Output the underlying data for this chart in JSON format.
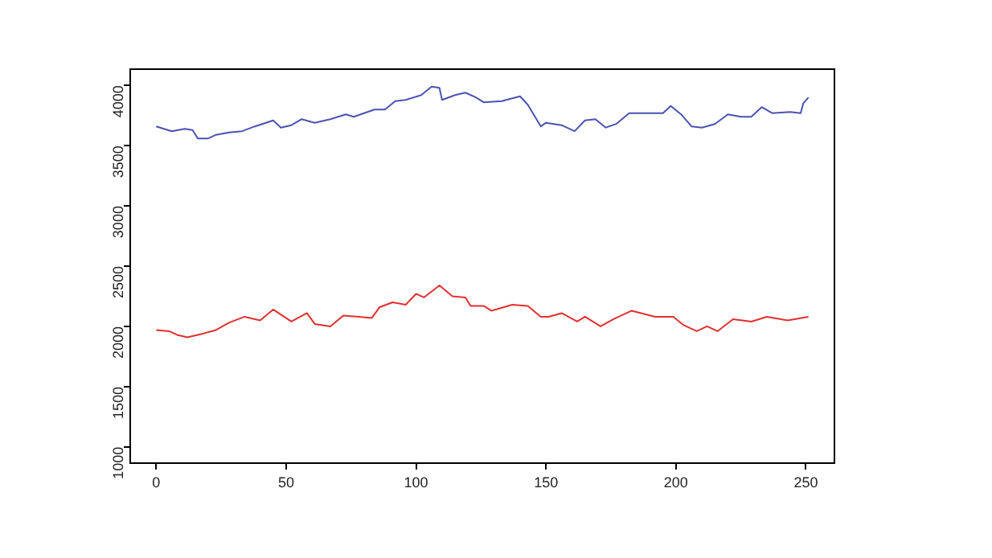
{
  "chart_data": {
    "type": "line",
    "xlim": [
      -10,
      261
    ],
    "ylim": [
      865,
      4135
    ],
    "xticks": [
      0,
      50,
      100,
      150,
      200,
      250
    ],
    "yticks": [
      1000,
      1500,
      2000,
      2500,
      3000,
      3500,
      4000
    ],
    "grid": false,
    "legend": false,
    "marker": "none",
    "line_style": "solid",
    "series": [
      {
        "color": "#4b52b0",
        "x": [
          0,
          6,
          11,
          14,
          16,
          20,
          23,
          28,
          33,
          38,
          45,
          48,
          52,
          56,
          61,
          67,
          73,
          76,
          84,
          88,
          92,
          96,
          102,
          106,
          109,
          110,
          115,
          119,
          123,
          126,
          133,
          140,
          143,
          148,
          150,
          156,
          161,
          165,
          169,
          173,
          177,
          182,
          189,
          195,
          198,
          202,
          206,
          210,
          215,
          220,
          225,
          229,
          233,
          237,
          244,
          248,
          249,
          251
        ],
        "values": [
          3660,
          3620,
          3640,
          3630,
          3560,
          3560,
          3590,
          3610,
          3620,
          3660,
          3710,
          3650,
          3670,
          3720,
          3690,
          3720,
          3760,
          3740,
          3800,
          3800,
          3870,
          3880,
          3920,
          3990,
          3980,
          3880,
          3920,
          3940,
          3900,
          3860,
          3870,
          3910,
          3840,
          3660,
          3690,
          3670,
          3620,
          3710,
          3720,
          3650,
          3680,
          3770,
          3770,
          3770,
          3830,
          3760,
          3660,
          3650,
          3680,
          3760,
          3740,
          3740,
          3820,
          3770,
          3780,
          3770,
          3850,
          3900
        ]
      },
      {
        "color": "#e03030",
        "x": [
          0,
          5,
          8,
          12,
          18,
          23,
          28,
          34,
          40,
          45,
          52,
          58,
          61,
          67,
          72,
          78,
          83,
          86,
          91,
          96,
          100,
          103,
          109,
          114,
          119,
          121,
          126,
          129,
          137,
          143,
          148,
          151,
          156,
          162,
          165,
          171,
          176,
          183,
          192,
          199,
          203,
          208,
          212,
          216,
          222,
          229,
          235,
          243,
          251
        ],
        "values": [
          1970,
          1960,
          1930,
          1910,
          1940,
          1970,
          2030,
          2080,
          2050,
          2140,
          2040,
          2110,
          2020,
          2000,
          2090,
          2080,
          2070,
          2160,
          2200,
          2180,
          2270,
          2240,
          2340,
          2250,
          2240,
          2170,
          2170,
          2130,
          2180,
          2170,
          2080,
          2080,
          2110,
          2040,
          2080,
          2000,
          2060,
          2130,
          2080,
          2080,
          2010,
          1960,
          2000,
          1960,
          2060,
          2040,
          2080,
          2050,
          2080
        ]
      }
    ]
  }
}
